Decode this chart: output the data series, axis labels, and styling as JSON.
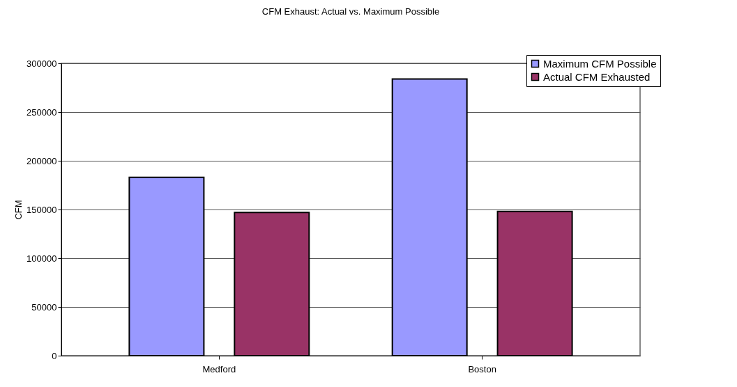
{
  "chart_data": {
    "type": "bar",
    "title": "CFM Exhaust: Actual vs. Maximum Possible",
    "ylabel": "CFM",
    "categories": [
      "Medford",
      "Boston"
    ],
    "series": [
      {
        "name": "Maximum CFM Possible",
        "color": "#9999ff",
        "values": [
          183000,
          284000
        ]
      },
      {
        "name": "Actual CFM Exhausted",
        "color": "#993366",
        "values": [
          147000,
          148000
        ]
      }
    ],
    "ylim": [
      0,
      300000
    ],
    "yticks": [
      0,
      50000,
      100000,
      150000,
      200000,
      250000,
      300000
    ],
    "grid": "y",
    "legend": "top right"
  }
}
